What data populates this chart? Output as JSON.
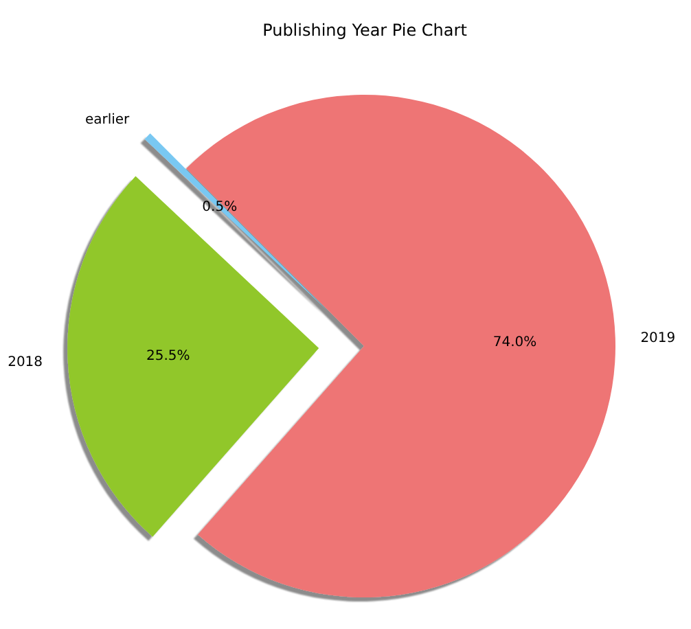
{
  "chart_data": {
    "type": "pie",
    "title": "Publishing Year Pie Chart",
    "categories": [
      "2019",
      "2018",
      "earlier"
    ],
    "values": [
      74.0,
      25.5,
      0.5
    ],
    "value_labels": [
      "74.0%",
      "25.5%",
      "0.5%"
    ],
    "colors": [
      "#ee7474",
      "#91c72c",
      "#79c8f2"
    ]
  }
}
